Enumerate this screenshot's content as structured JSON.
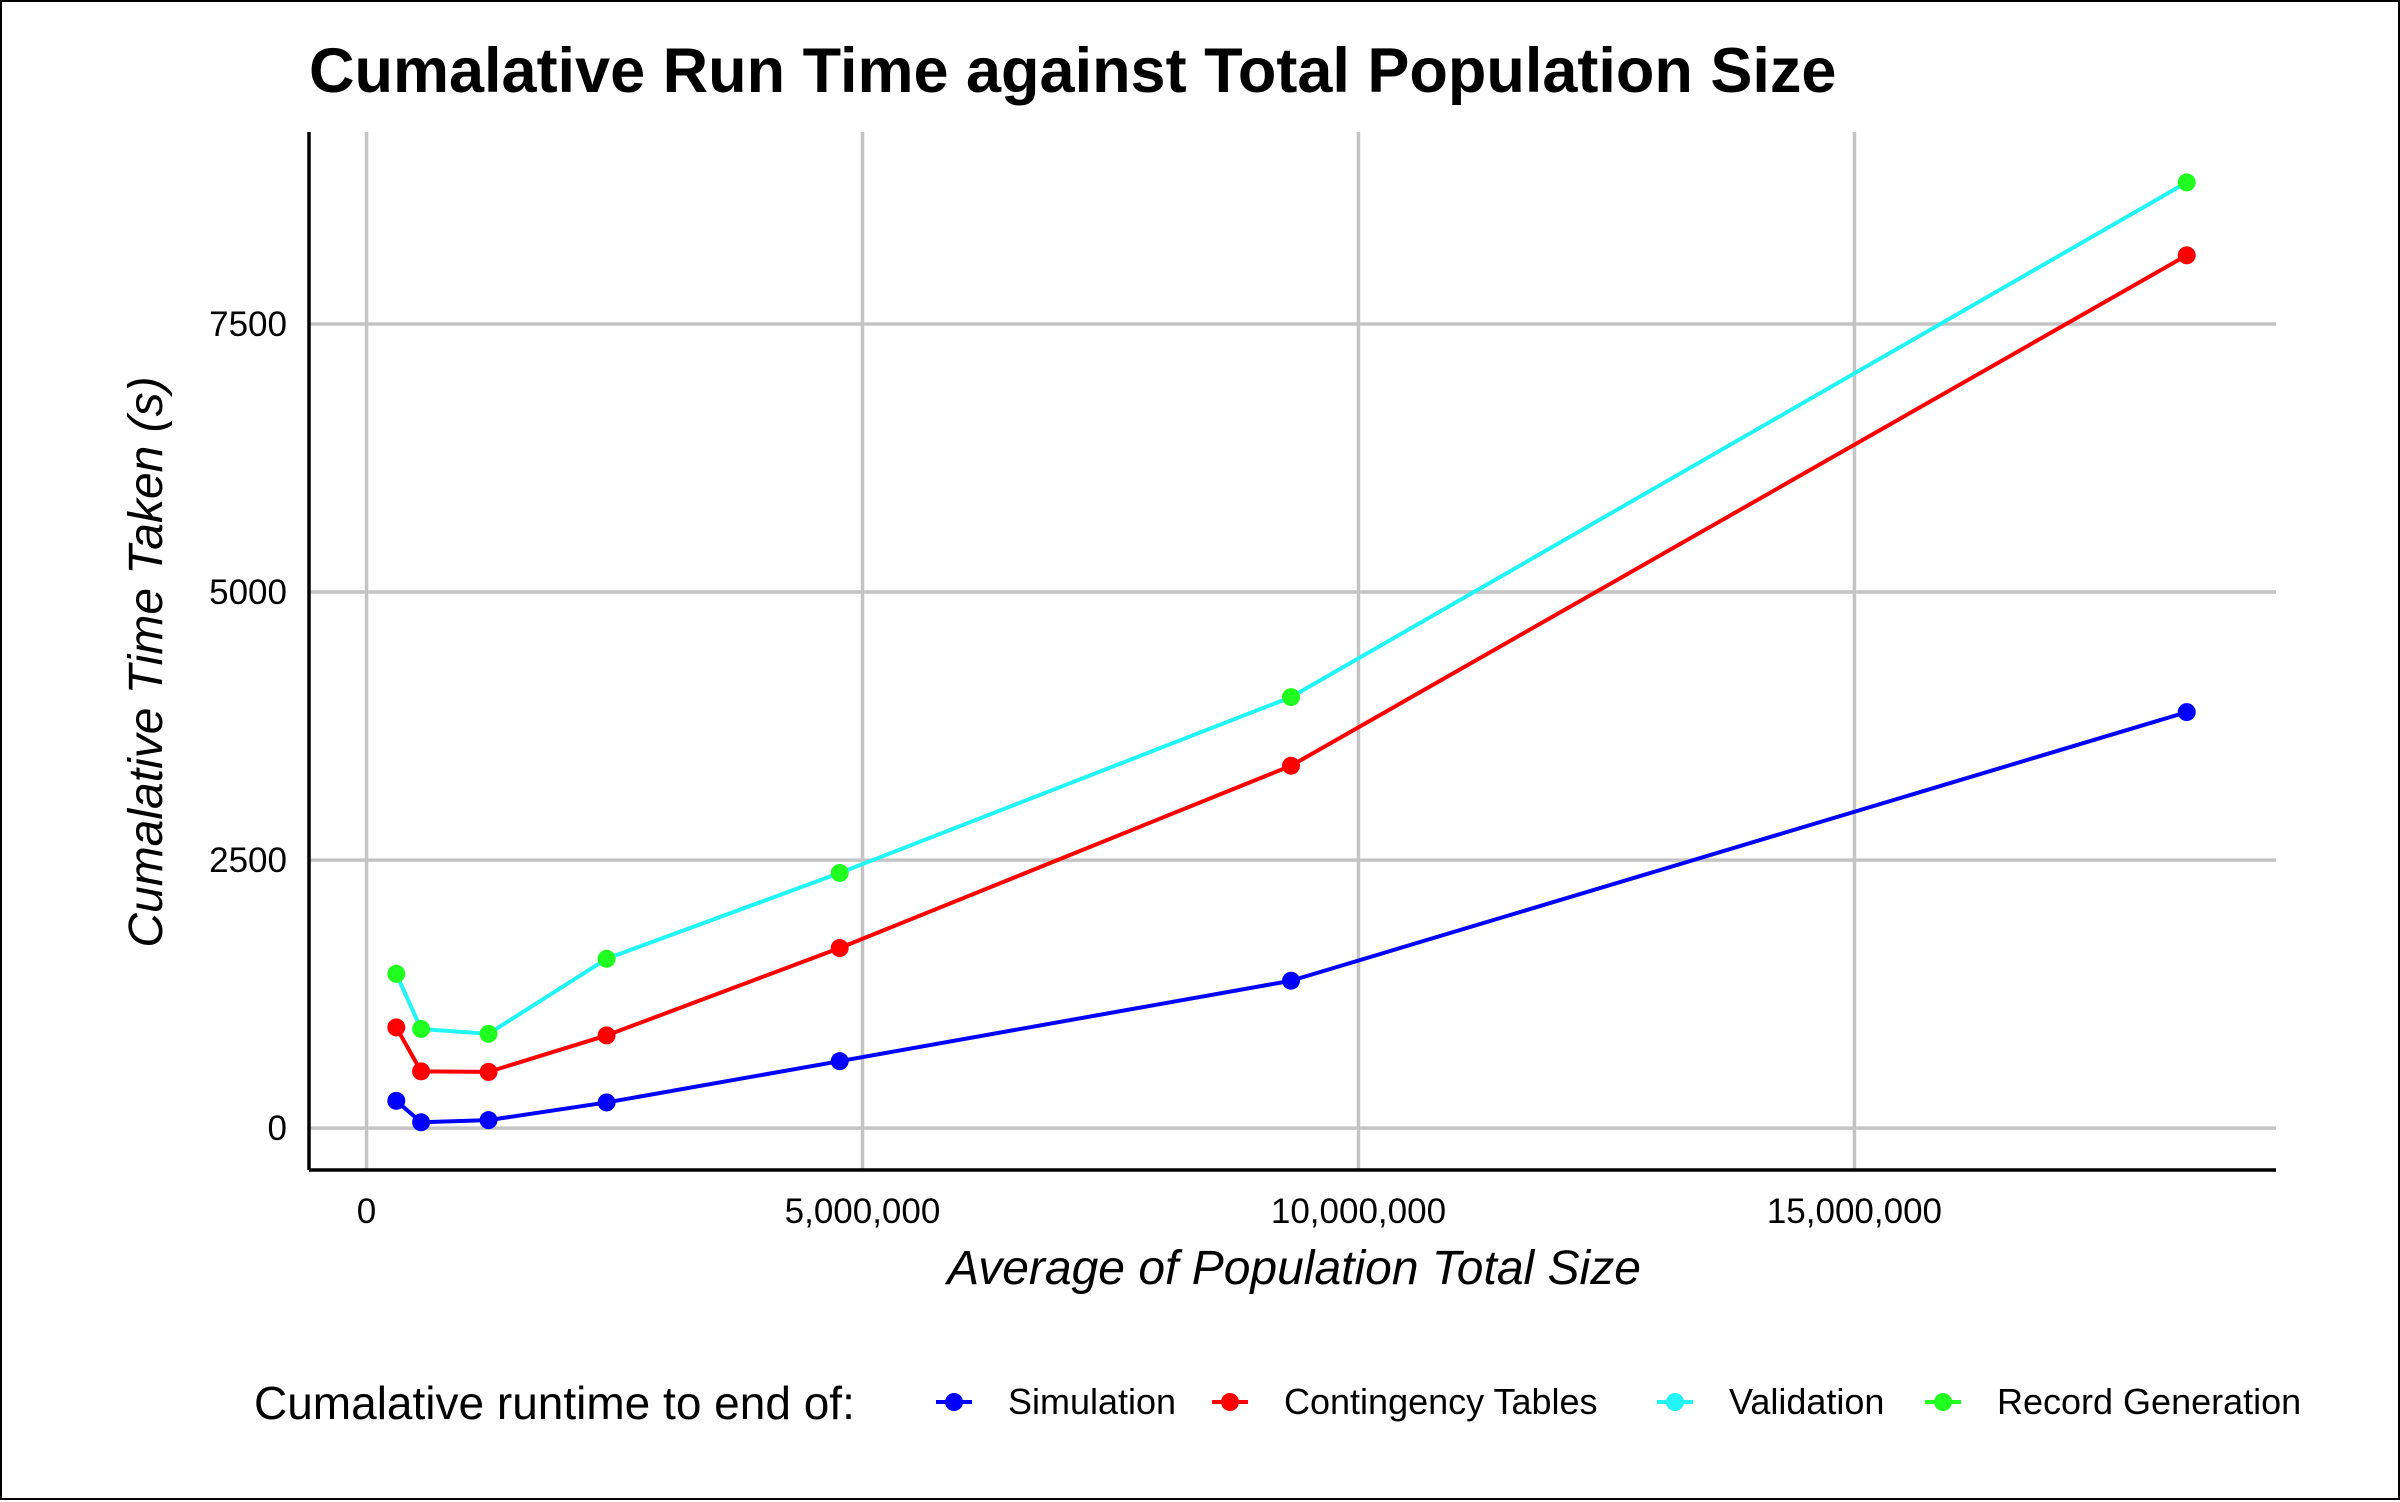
{
  "chart_data": {
    "type": "line",
    "title": "Cumalative Run Time against Total Population Size",
    "xlabel": "Average of Population Total Size",
    "ylabel": "Cumalative Time Taken (s)",
    "xlim": [
      -580000,
      19250000
    ],
    "ylim": [
      -390,
      9290
    ],
    "x_ticks": [
      0,
      5000000,
      10000000,
      15000000
    ],
    "x_tick_labels": [
      "0",
      "5,000,000",
      "10,000,000",
      "15,000,000"
    ],
    "y_ticks": [
      0,
      2500,
      5000,
      7500
    ],
    "y_tick_labels": [
      "0",
      "2500",
      "5000",
      "7500"
    ],
    "grid": true,
    "x": [
      300000,
      550000,
      1230000,
      2420000,
      4770000,
      9320000,
      18350000
    ],
    "series": [
      {
        "name": "Simulation",
        "color": "#0000ff",
        "marker_color": "#0000ff",
        "values": [
          255,
          55,
          75,
          240,
          625,
          1375,
          3880
        ]
      },
      {
        "name": "Contingency Tables",
        "color": "#ff0000",
        "marker_color": "#ff0000",
        "values": [
          940,
          530,
          525,
          865,
          1680,
          3380,
          8140
        ]
      },
      {
        "name": "Validation",
        "color": "#21f5f5",
        "marker_color": null,
        "values": [
          1440,
          925,
          880,
          1580,
          2380,
          4020,
          8820
        ]
      },
      {
        "name": "Record Generation",
        "color": null,
        "marker_color": "#21ff21",
        "values": [
          1440,
          925,
          880,
          1580,
          2380,
          4020,
          8820
        ]
      }
    ],
    "legend": {
      "title": "Cumalative runtime to end of:",
      "placement": "bottom"
    }
  }
}
